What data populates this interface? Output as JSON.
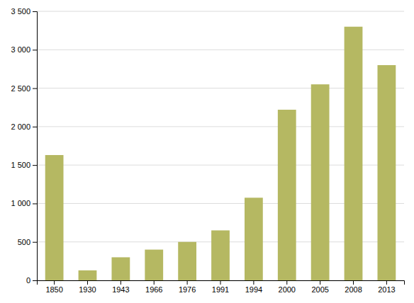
{
  "chart_data": {
    "type": "bar",
    "categories": [
      "1850",
      "1930",
      "1943",
      "1966",
      "1976",
      "1991",
      "1994",
      "2000",
      "2005",
      "2008",
      "2013"
    ],
    "values": [
      1630,
      130,
      300,
      400,
      500,
      650,
      1075,
      2220,
      2550,
      3300,
      2800
    ],
    "color": "#b5b862",
    "ylim": [
      0,
      3500
    ],
    "yticks": [
      0,
      500,
      {
        "value": 1000,
        "label": "1 000"
      },
      {
        "value": 1500,
        "label": "1 500"
      },
      {
        "value": 2000,
        "label": "2 000"
      },
      {
        "value": 2500,
        "label": "2 500"
      },
      {
        "value": 3000,
        "label": "3 000"
      },
      {
        "value": 3500,
        "label": "3 500"
      }
    ],
    "grid": true
  }
}
